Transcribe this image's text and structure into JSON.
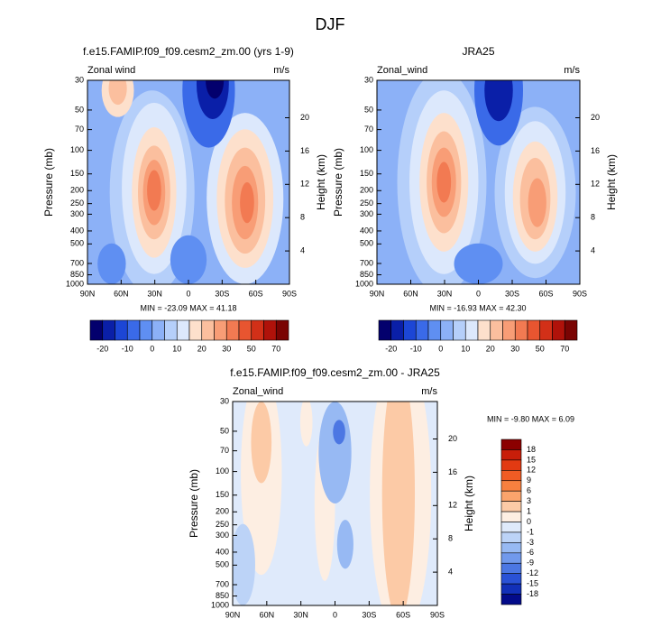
{
  "title": "DJF",
  "chart_data": [
    {
      "type": "contour",
      "title": "f.e15.FAMIP.f09_f09.cesm2_zm.00 (yrs 1-9)",
      "left_label": "Zonal wind",
      "right_label": "m/s",
      "ylabel": "Pressure (mb)",
      "y2label": "Height (km)",
      "stats": "MIN = -23.09  MAX = 41.18",
      "xlim": [
        90,
        -90
      ],
      "xticks": [
        {
          "value": 90,
          "label": "90N"
        },
        {
          "value": 60,
          "label": "60N"
        },
        {
          "value": 30,
          "label": "30N"
        },
        0,
        {
          "value": -30,
          "label": "30S"
        },
        {
          "value": -60,
          "label": "60S"
        },
        {
          "value": -90,
          "label": "90S"
        }
      ],
      "ylim": [
        1000,
        30
      ],
      "log_y": true,
      "yticks": [
        30,
        50,
        70,
        100,
        150,
        200,
        250,
        300,
        400,
        500,
        700,
        850,
        1000
      ],
      "y2lim": [
        0,
        24.5
      ],
      "y2ticks": [
        4,
        8,
        12,
        16,
        20
      ],
      "colorbar": {
        "orientation": "horizontal",
        "labels": [
          -20,
          -10,
          0,
          10,
          20,
          30,
          50,
          70
        ],
        "colors": [
          "#03006d",
          "#0a1fa8",
          "#1c46d6",
          "#3a6ae8",
          "#5f8ff2",
          "#8cb1f7",
          "#b5cffa",
          "#dce8fc",
          "#fde0cc",
          "#fbbf9e",
          "#f89d76",
          "#f27a52",
          "#e85530",
          "#d23018",
          "#b0120a",
          "#7a0403"
        ]
      }
    },
    {
      "type": "contour",
      "title": "JRA25",
      "left_label": "Zonal_wind",
      "right_label": "m/s",
      "ylabel": "Pressure (mb)",
      "y2label": "Height (km)",
      "stats": "MIN = -16.93  MAX = 42.30",
      "xlim": [
        90,
        -90
      ],
      "xticks": [
        {
          "value": 90,
          "label": "90N"
        },
        {
          "value": 60,
          "label": "60N"
        },
        {
          "value": 30,
          "label": "30N"
        },
        0,
        {
          "value": -30,
          "label": "30S"
        },
        {
          "value": -60,
          "label": "60S"
        },
        {
          "value": -90,
          "label": "90S"
        }
      ],
      "ylim": [
        1000,
        30
      ],
      "log_y": true,
      "yticks": [
        30,
        50,
        70,
        100,
        150,
        200,
        250,
        300,
        400,
        500,
        700,
        850,
        1000
      ],
      "y2lim": [
        0,
        24.5
      ],
      "y2ticks": [
        4,
        8,
        12,
        16,
        20
      ],
      "colorbar": {
        "orientation": "horizontal",
        "labels": [
          -20,
          -10,
          0,
          10,
          20,
          30,
          50,
          70
        ],
        "colors": [
          "#03006d",
          "#0a1fa8",
          "#1c46d6",
          "#3a6ae8",
          "#5f8ff2",
          "#8cb1f7",
          "#b5cffa",
          "#dce8fc",
          "#fde0cc",
          "#fbbf9e",
          "#f89d76",
          "#f27a52",
          "#e85530",
          "#d23018",
          "#b0120a",
          "#7a0403"
        ]
      }
    },
    {
      "type": "contour",
      "title": "f.e15.FAMIP.f09_f09.cesm2_zm.00 - JRA25",
      "left_label": "Zonal_wind",
      "right_label": "m/s",
      "ylabel": "Pressure (mb)",
      "y2label": "Height (km)",
      "stats": "MIN = -9.80  MAX = 6.09",
      "xlim": [
        90,
        -90
      ],
      "xticks": [
        {
          "value": 90,
          "label": "90N"
        },
        {
          "value": 60,
          "label": "60N"
        },
        {
          "value": 30,
          "label": "30N"
        },
        0,
        {
          "value": -30,
          "label": "30S"
        },
        {
          "value": -60,
          "label": "60S"
        },
        {
          "value": -90,
          "label": "90S"
        }
      ],
      "ylim": [
        1000,
        30
      ],
      "log_y": true,
      "yticks": [
        30,
        50,
        70,
        100,
        150,
        200,
        250,
        300,
        400,
        500,
        700,
        850,
        1000
      ],
      "y2lim": [
        0,
        24.5
      ],
      "y2ticks": [
        4,
        8,
        12,
        16,
        20
      ],
      "colorbar": {
        "orientation": "vertical",
        "labels": [
          18,
          15,
          12,
          9,
          6,
          3,
          1,
          0,
          -1,
          -3,
          -6,
          -9,
          -12,
          -15,
          -18
        ],
        "colors": [
          "#8b0000",
          "#c81e0a",
          "#e23a12",
          "#f05c24",
          "#f7803f",
          "#fba46c",
          "#fccaa6",
          "#fdeee2",
          "#dfeafb",
          "#bcd3f7",
          "#97b9f3",
          "#7199ec",
          "#4c77e3",
          "#2a52d6",
          "#1230b8",
          "#030b8a"
        ]
      }
    }
  ]
}
